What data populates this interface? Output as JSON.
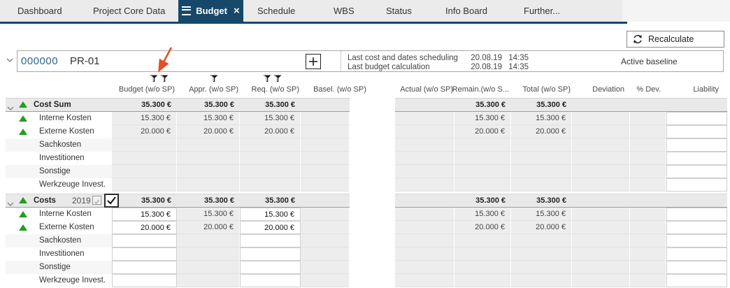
{
  "tabs": [
    {
      "label": "Dashboard",
      "active": false
    },
    {
      "label": "Project Core Data",
      "active": false
    },
    {
      "label": "Budget",
      "active": true
    },
    {
      "label": "Schedule",
      "active": false
    },
    {
      "label": "WBS",
      "active": false
    },
    {
      "label": "Status",
      "active": false
    },
    {
      "label": "Info Board",
      "active": false
    },
    {
      "label": "Further...",
      "active": false
    }
  ],
  "toolbar": {
    "recalculate_label": "Recalculate"
  },
  "project_header": {
    "id": "000000",
    "name": "PR-01",
    "info": [
      {
        "label": "Last cost and dates scheduling",
        "date": "20.08.19",
        "time": "14:35"
      },
      {
        "label": "Last budget calculation",
        "date": "20.08.19",
        "time": "14:35"
      }
    ],
    "baseline": "Active baseline"
  },
  "columns": [
    {
      "key": "budget",
      "label": "Budget (w/o SP)",
      "filters": 2
    },
    {
      "key": "appr",
      "label": "Appr. (w/o SP)",
      "filters": 1
    },
    {
      "key": "req",
      "label": "Req. (w/o SP)",
      "filters": 2
    },
    {
      "key": "basel",
      "label": "Basel. (w/o SP)",
      "filters": 0
    },
    {
      "key": "actual",
      "label": "Actual (w/o SP)",
      "filters": 0
    },
    {
      "key": "remain",
      "label": "Remain.(w/o S...",
      "filters": 0
    },
    {
      "key": "total",
      "label": "Total (w/o SP)",
      "filters": 0
    },
    {
      "key": "deviation",
      "label": "Deviation",
      "filters": 0
    },
    {
      "key": "pdev",
      "label": "% Dev.",
      "filters": 0
    },
    {
      "key": "liability",
      "label": "Liability",
      "filters": 0
    }
  ],
  "table": {
    "groups": [
      {
        "header": {
          "label": "Cost Sum",
          "year": null,
          "checkboxes": false,
          "values": {
            "budget": "35.300 €",
            "appr": "35.300 €",
            "req": "35.300 €",
            "remain": "35.300 €",
            "total": "35.300 €"
          }
        },
        "editable_cols": [
          "liability"
        ],
        "rows": [
          {
            "label": "Interne Kosten",
            "triangle": true,
            "values": {
              "budget": "15.300 €",
              "appr": "15.300 €",
              "req": "15.300 €",
              "remain": "15.300 €",
              "total": "15.300 €"
            }
          },
          {
            "label": "Externe Kosten",
            "triangle": true,
            "values": {
              "budget": "20.000 €",
              "appr": "20.000 €",
              "req": "20.000 €",
              "remain": "20.000 €",
              "total": "20.000 €"
            }
          },
          {
            "label": "Sachkosten",
            "striped": true
          },
          {
            "label": "Investitionen"
          },
          {
            "label": "Sonstige",
            "striped": true
          },
          {
            "label": "Werkzeuge Invest."
          }
        ]
      },
      {
        "header": {
          "label": "Costs",
          "year": "2019",
          "checkboxes": true,
          "values": {
            "budget": "35.300 €",
            "appr": "35.300 €",
            "req": "35.300 €",
            "remain": "35.300 €",
            "total": "35.300 €"
          }
        },
        "editable_cols": [
          "budget",
          "req",
          "liability"
        ],
        "rows": [
          {
            "label": "Interne Kosten",
            "triangle": true,
            "values": {
              "budget": "15.300 €",
              "appr": "15.300 €",
              "req": "15.300 €",
              "remain": "15.300 €",
              "total": "15.300 €"
            }
          },
          {
            "label": "Externe Kosten",
            "triangle": true,
            "values": {
              "budget": "20.000 €",
              "appr": "20.000 €",
              "req": "20.000 €",
              "remain": "20.000 €",
              "total": "20.000 €"
            }
          },
          {
            "label": "Sachkosten",
            "striped": true
          },
          {
            "label": "Investitionen"
          },
          {
            "label": "Sonstige",
            "striped": true
          },
          {
            "label": "Werkzeuge Invest."
          }
        ]
      }
    ]
  },
  "icons": {
    "hamburger": "menu-icon",
    "close": "close-icon",
    "refresh": "refresh-icon",
    "plus": "plus-icon",
    "chevron": "chevron-down-icon",
    "filter": "filter-icon",
    "triangle_up": "green-up-triangle-icon",
    "annotation": "red-arrow-annotation"
  },
  "colors": {
    "accent_navy": "#17486a",
    "green_status": "#1da01d",
    "arrow_red": "#e2502a",
    "project_id_blue": "#2f6591",
    "cell_gray": "#ededed",
    "band_gray": "#e9e9e9"
  }
}
